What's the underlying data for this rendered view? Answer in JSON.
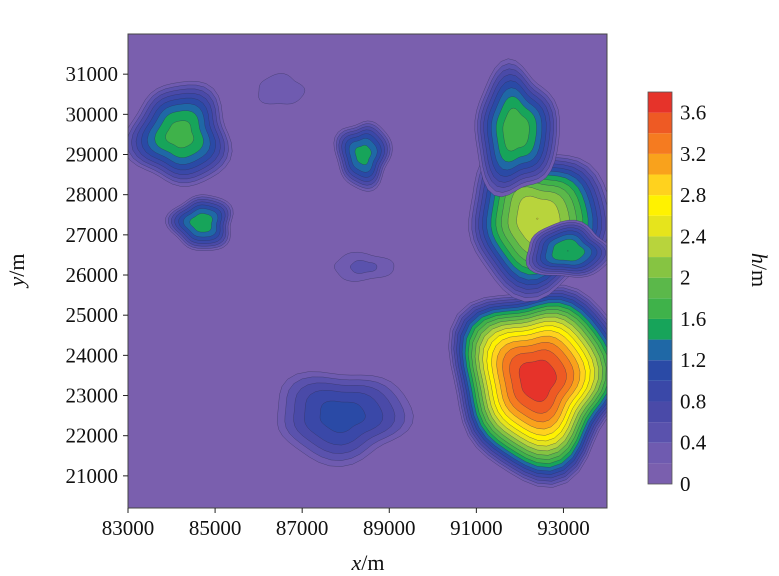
{
  "chart_data": {
    "type": "heatmap",
    "subtype": "filled-contour",
    "xlabel_var": "x",
    "xlabel_unit": "/m",
    "ylabel_var": "y",
    "ylabel_unit": "/m",
    "colorbar_var": "h",
    "colorbar_unit": "/m",
    "xlim": [
      83000,
      94000
    ],
    "ylim": [
      20200,
      32000
    ],
    "x_ticks": [
      83000,
      85000,
      87000,
      89000,
      91000,
      93000
    ],
    "x_tick_labels": [
      "83000",
      "85000",
      "87000",
      "89000",
      "91000",
      "93000"
    ],
    "y_ticks": [
      21000,
      22000,
      23000,
      24000,
      25000,
      26000,
      27000,
      28000,
      29000,
      30000,
      31000
    ],
    "y_tick_labels": [
      "21000",
      "22000",
      "23000",
      "24000",
      "25000",
      "26000",
      "27000",
      "28000",
      "29000",
      "30000",
      "31000"
    ],
    "colorbar_ticks": [
      0,
      0.4,
      0.8,
      1.2,
      1.6,
      2,
      2.4,
      2.8,
      3.2,
      3.6
    ],
    "colorbar_tick_labels": [
      "0",
      "0.4",
      "0.8",
      "1.2",
      "1.6",
      "2",
      "2.4",
      "2.8",
      "3.2",
      "3.6"
    ],
    "levels": [
      0,
      0.2,
      0.4,
      0.6,
      0.8,
      1.0,
      1.2,
      1.4,
      1.6,
      1.8,
      2.0,
      2.2,
      2.4,
      2.6,
      2.8,
      3.0,
      3.2,
      3.4,
      3.6,
      3.8
    ],
    "colors": [
      "#7a5fae",
      "#6f5bb0",
      "#5a52ad",
      "#4a4aa8",
      "#3a48a8",
      "#2a4aa6",
      "#1f68a6",
      "#17a45a",
      "#3fb24a",
      "#5bb84a",
      "#86c442",
      "#b8d43c",
      "#e6e41c",
      "#fff200",
      "#ffd21e",
      "#f9a21c",
      "#f57b20",
      "#ee5a24",
      "#e6332a",
      "#e31e24"
    ],
    "peaks": [
      {
        "x": 92400,
        "y": 23400,
        "h": 3.75
      },
      {
        "x": 92400,
        "y": 27400,
        "h": 2.4
      },
      {
        "x": 91900,
        "y": 29600,
        "h": 1.75
      },
      {
        "x": 93100,
        "y": 26600,
        "h": 1.6
      },
      {
        "x": 84200,
        "y": 29500,
        "h": 1.7
      },
      {
        "x": 84700,
        "y": 27300,
        "h": 1.55
      },
      {
        "x": 88400,
        "y": 29000,
        "h": 1.5
      },
      {
        "x": 87900,
        "y": 22500,
        "h": 1.1
      },
      {
        "x": 88400,
        "y": 26200,
        "h": 0.45
      },
      {
        "x": 86500,
        "y": 30600,
        "h": 0.35
      }
    ]
  }
}
